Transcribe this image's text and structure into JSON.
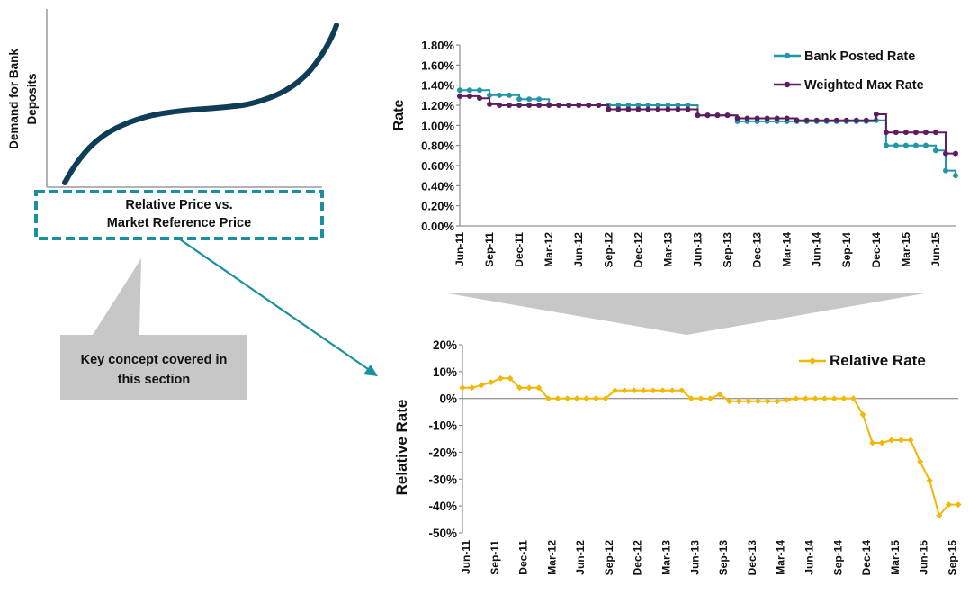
{
  "concept_panel": {
    "y_label_line1": "Demand for Bank",
    "y_label_line2": "Deposits",
    "box_line1": "Relative Price vs.",
    "box_line2": "Market Reference Price",
    "callout_line1": "Key concept covered in",
    "callout_line2": "this section"
  },
  "colors": {
    "curve": "#0f3d57",
    "dashed_box": "#1a8fa0",
    "arrow": "#1a8fa0",
    "callout_bg": "#c7c7c7",
    "funnel": "#c7c7c7",
    "bank_posted": "#2196a6",
    "weighted_max": "#5e1d5e",
    "relative": "#f2b705"
  },
  "chart_data": [
    {
      "type": "line",
      "ylabel": "Rate",
      "xlabel": "",
      "ylim": [
        0,
        0.018
      ],
      "y_tick_labels": [
        "0.00%",
        "0.20%",
        "0.40%",
        "0.60%",
        "0.80%",
        "1.00%",
        "1.20%",
        "1.40%",
        "1.60%",
        "1.80%"
      ],
      "x_tick_labels": [
        "Jun-11",
        "Sep-11",
        "Dec-11",
        "Mar-12",
        "Jun-12",
        "Sep-12",
        "Dec-12",
        "Mar-13",
        "Jun-13",
        "Sep-13",
        "Dec-13",
        "Mar-14",
        "Jun-14",
        "Sep-14",
        "Dec-14",
        "Mar-15",
        "Jun-15"
      ],
      "legend_position": "top-right",
      "grid": false,
      "series": [
        {
          "name": "Bank Posted Rate",
          "step": "step-after",
          "marker": "circle",
          "values": [
            0.0135,
            0.0135,
            0.0135,
            0.013,
            0.013,
            0.013,
            0.0126,
            0.0126,
            0.0126,
            0.012,
            0.012,
            0.012,
            0.012,
            0.012,
            0.012,
            0.012,
            0.012,
            0.012,
            0.012,
            0.012,
            0.012,
            0.012,
            0.012,
            0.012,
            0.011,
            0.011,
            0.011,
            0.011,
            0.0104,
            0.0104,
            0.0104,
            0.0104,
            0.0104,
            0.0104,
            0.0104,
            0.0104,
            0.0104,
            0.0104,
            0.0104,
            0.0104,
            0.0104,
            0.0104,
            0.0105,
            0.008,
            0.008,
            0.008,
            0.008,
            0.008,
            0.0075,
            0.0055,
            0.005
          ]
        },
        {
          "name": "Weighted Max Rate",
          "step": "step-after",
          "marker": "circle",
          "values": [
            0.0129,
            0.0129,
            0.0127,
            0.0121,
            0.012,
            0.012,
            0.012,
            0.012,
            0.012,
            0.012,
            0.012,
            0.012,
            0.012,
            0.012,
            0.012,
            0.0116,
            0.0116,
            0.0116,
            0.0116,
            0.0116,
            0.0116,
            0.0116,
            0.0116,
            0.0116,
            0.011,
            0.011,
            0.011,
            0.011,
            0.0107,
            0.0107,
            0.0107,
            0.0107,
            0.0107,
            0.0107,
            0.0105,
            0.0105,
            0.0105,
            0.0105,
            0.0105,
            0.0105,
            0.0105,
            0.0105,
            0.0111,
            0.0093,
            0.0093,
            0.0093,
            0.0093,
            0.0093,
            0.0093,
            0.0072,
            0.0072
          ]
        }
      ]
    },
    {
      "type": "line",
      "ylabel": "Relative Rate",
      "xlabel": "",
      "ylim": [
        -0.5,
        0.2
      ],
      "y_tick_labels": [
        "20%",
        "10%",
        "0%",
        "-10%",
        "-20%",
        "-30%",
        "-40%",
        "-50%"
      ],
      "x_tick_labels": [
        "Jun-11",
        "Sep-11",
        "Dec-11",
        "Mar-12",
        "Jun-12",
        "Sep-12",
        "Dec-12",
        "Mar-13",
        "Jun-13",
        "Sep-13",
        "Dec-13",
        "Mar-14",
        "Jun-14",
        "Sep-14",
        "Dec-14",
        "Mar-15",
        "Jun-15",
        "Sep-15"
      ],
      "legend_position": "top-right",
      "grid": false,
      "series": [
        {
          "name": "Relative Rate",
          "marker": "diamond",
          "values": [
            0.04,
            0.04,
            0.05,
            0.06,
            0.075,
            0.075,
            0.04,
            0.04,
            0.04,
            0.0,
            0.0,
            0.0,
            0.0,
            0.0,
            0.0,
            0.0,
            0.03,
            0.03,
            0.03,
            0.03,
            0.03,
            0.03,
            0.03,
            0.03,
            0.0,
            0.0,
            0.0,
            0.015,
            -0.01,
            -0.01,
            -0.01,
            -0.01,
            -0.01,
            -0.01,
            -0.005,
            0.0,
            0.0,
            0.0,
            0.0,
            0.0,
            0.0,
            0.0,
            -0.06,
            -0.165,
            -0.165,
            -0.155,
            -0.155,
            -0.155,
            -0.235,
            -0.305,
            -0.435,
            -0.395,
            -0.395
          ]
        }
      ]
    }
  ]
}
